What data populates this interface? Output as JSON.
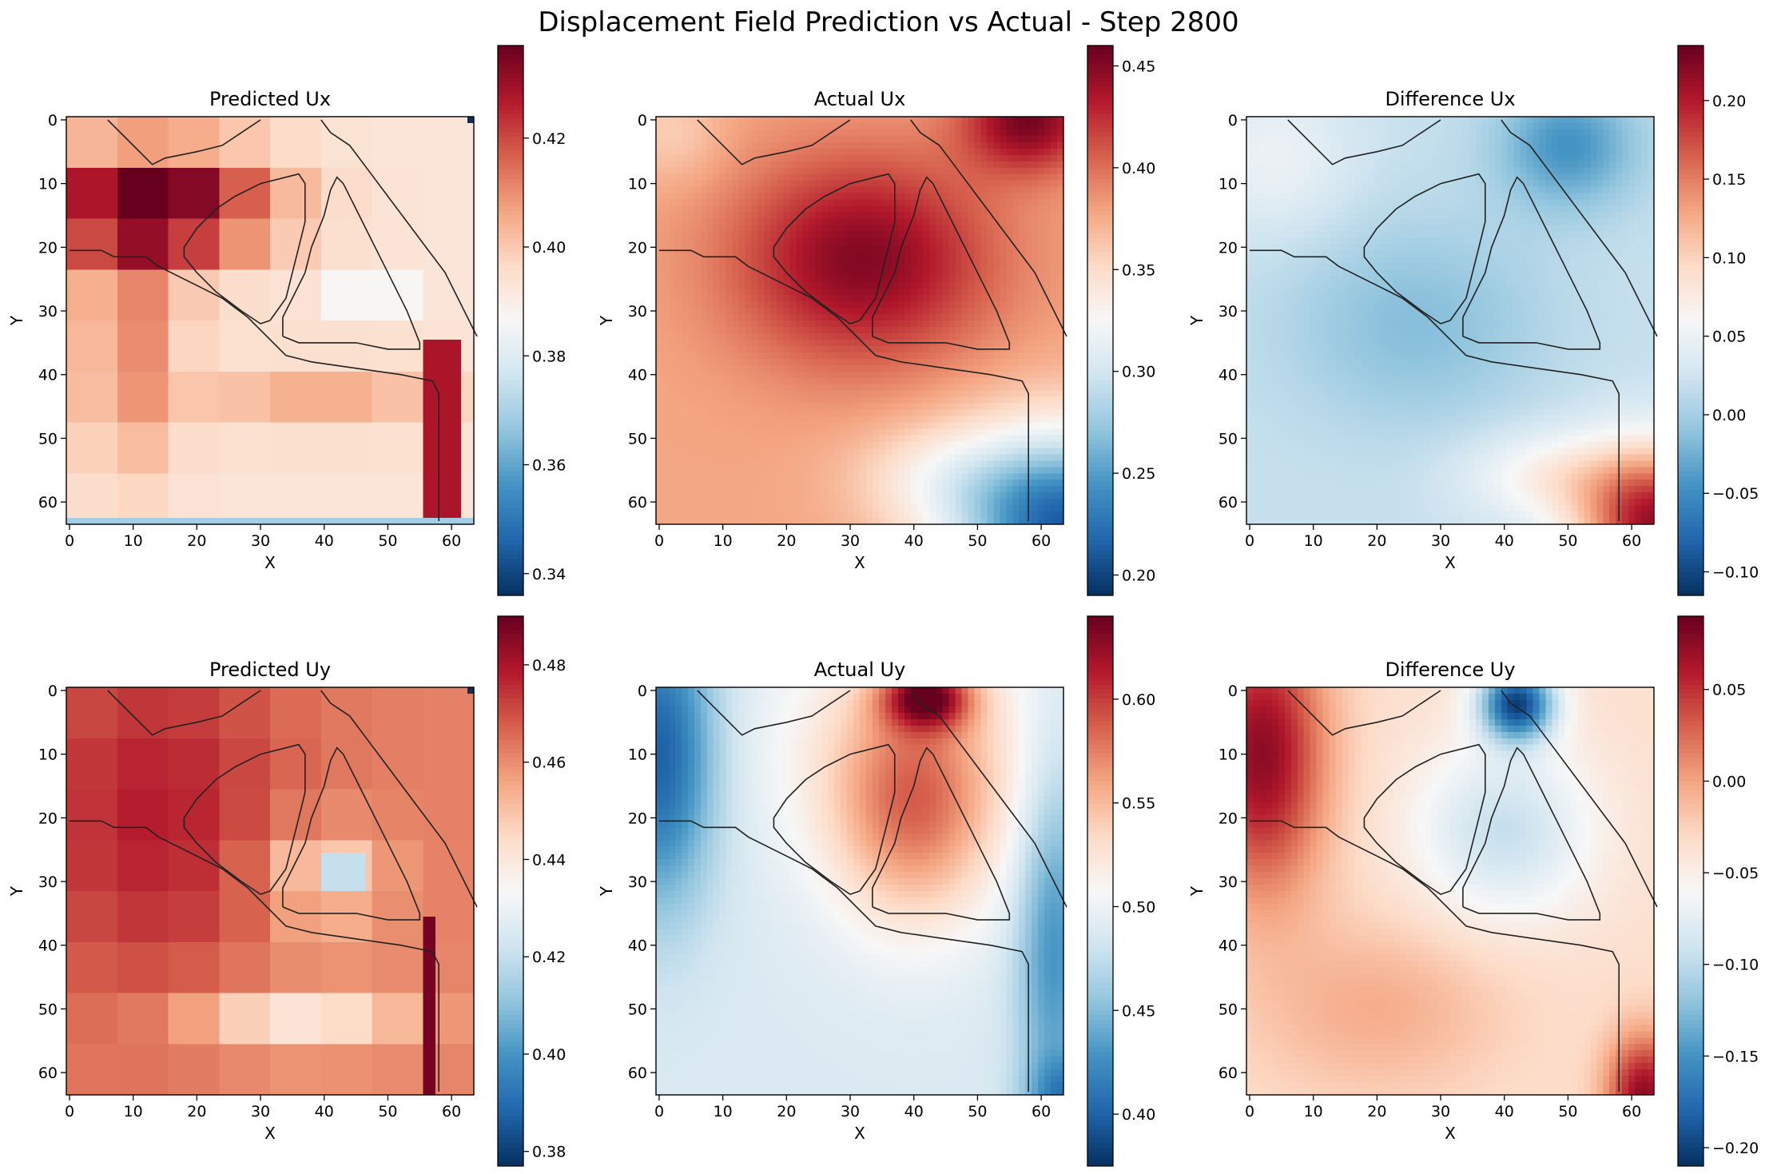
{
  "figure": {
    "suptitle": "Displacement Field Prediction vs Actual - Step 2800"
  },
  "colormap": "RdBu_r",
  "chart_data": [
    {
      "type": "heatmap",
      "title": "Predicted Ux",
      "xlabel": "X",
      "ylabel": "Y",
      "grid_size": 64,
      "x_ticks": [
        0,
        10,
        20,
        30,
        40,
        50,
        60
      ],
      "y_ticks": [
        0,
        10,
        20,
        30,
        40,
        50,
        60
      ],
      "color_range": [
        0.336,
        0.437
      ],
      "colorbar_ticks": [
        0.34,
        0.36,
        0.38,
        0.4,
        0.42
      ],
      "colorbar_tick_labels": [
        "0.34",
        "0.36",
        "0.38",
        "0.40",
        "0.42"
      ],
      "field": "pred_ux",
      "contours": true,
      "grid": false
    },
    {
      "type": "heatmap",
      "title": "Actual Ux",
      "xlabel": "X",
      "ylabel": "Y",
      "grid_size": 64,
      "x_ticks": [
        0,
        10,
        20,
        30,
        40,
        50,
        60
      ],
      "y_ticks": [
        0,
        10,
        20,
        30,
        40,
        50,
        60
      ],
      "color_range": [
        0.19,
        0.46
      ],
      "colorbar_ticks": [
        0.2,
        0.25,
        0.3,
        0.35,
        0.4,
        0.45
      ],
      "colorbar_tick_labels": [
        "0.20",
        "0.25",
        "0.30",
        "0.35",
        "0.40",
        "0.45"
      ],
      "field": "act_ux",
      "contours": true,
      "grid": false
    },
    {
      "type": "heatmap",
      "title": "Difference Ux",
      "xlabel": "X",
      "ylabel": "Y",
      "grid_size": 64,
      "x_ticks": [
        0,
        10,
        20,
        30,
        40,
        50,
        60
      ],
      "y_ticks": [
        0,
        10,
        20,
        30,
        40,
        50,
        60
      ],
      "color_range": [
        -0.115,
        0.235
      ],
      "colorbar_ticks": [
        -0.1,
        -0.05,
        0.0,
        0.05,
        0.1,
        0.15,
        0.2
      ],
      "colorbar_tick_labels": [
        "−0.10",
        "−0.05",
        "0.00",
        "0.05",
        "0.10",
        "0.15",
        "0.20"
      ],
      "field": "diff_ux",
      "contours": true,
      "grid": false
    },
    {
      "type": "heatmap",
      "title": "Predicted Uy",
      "xlabel": "X",
      "ylabel": "Y",
      "grid_size": 64,
      "x_ticks": [
        0,
        10,
        20,
        30,
        40,
        50,
        60
      ],
      "y_ticks": [
        0,
        10,
        20,
        30,
        40,
        50,
        60
      ],
      "color_range": [
        0.377,
        0.49
      ],
      "colorbar_ticks": [
        0.38,
        0.4,
        0.42,
        0.44,
        0.46,
        0.48
      ],
      "colorbar_tick_labels": [
        "0.38",
        "0.40",
        "0.42",
        "0.44",
        "0.46",
        "0.48"
      ],
      "field": "pred_uy",
      "contours": true,
      "grid": false
    },
    {
      "type": "heatmap",
      "title": "Actual Uy",
      "xlabel": "X",
      "ylabel": "Y",
      "grid_size": 64,
      "x_ticks": [
        0,
        10,
        20,
        30,
        40,
        50,
        60
      ],
      "y_ticks": [
        0,
        10,
        20,
        30,
        40,
        50,
        60
      ],
      "color_range": [
        0.375,
        0.64
      ],
      "colorbar_ticks": [
        0.4,
        0.45,
        0.5,
        0.55,
        0.6
      ],
      "colorbar_tick_labels": [
        "0.40",
        "0.45",
        "0.50",
        "0.55",
        "0.60"
      ],
      "field": "act_uy",
      "contours": true,
      "grid": false
    },
    {
      "type": "heatmap",
      "title": "Difference Uy",
      "xlabel": "X",
      "ylabel": "Y",
      "grid_size": 64,
      "x_ticks": [
        0,
        10,
        20,
        30,
        40,
        50,
        60
      ],
      "y_ticks": [
        0,
        10,
        20,
        30,
        40,
        50,
        60
      ],
      "color_range": [
        -0.21,
        0.09
      ],
      "colorbar_ticks": [
        -0.2,
        -0.15,
        -0.1,
        -0.05,
        0.0,
        0.05
      ],
      "colorbar_tick_labels": [
        "−0.20",
        "−0.15",
        "−0.10",
        "−0.05",
        "0.00",
        "0.05"
      ],
      "field": "diff_uy",
      "contours": true,
      "grid": false
    }
  ]
}
